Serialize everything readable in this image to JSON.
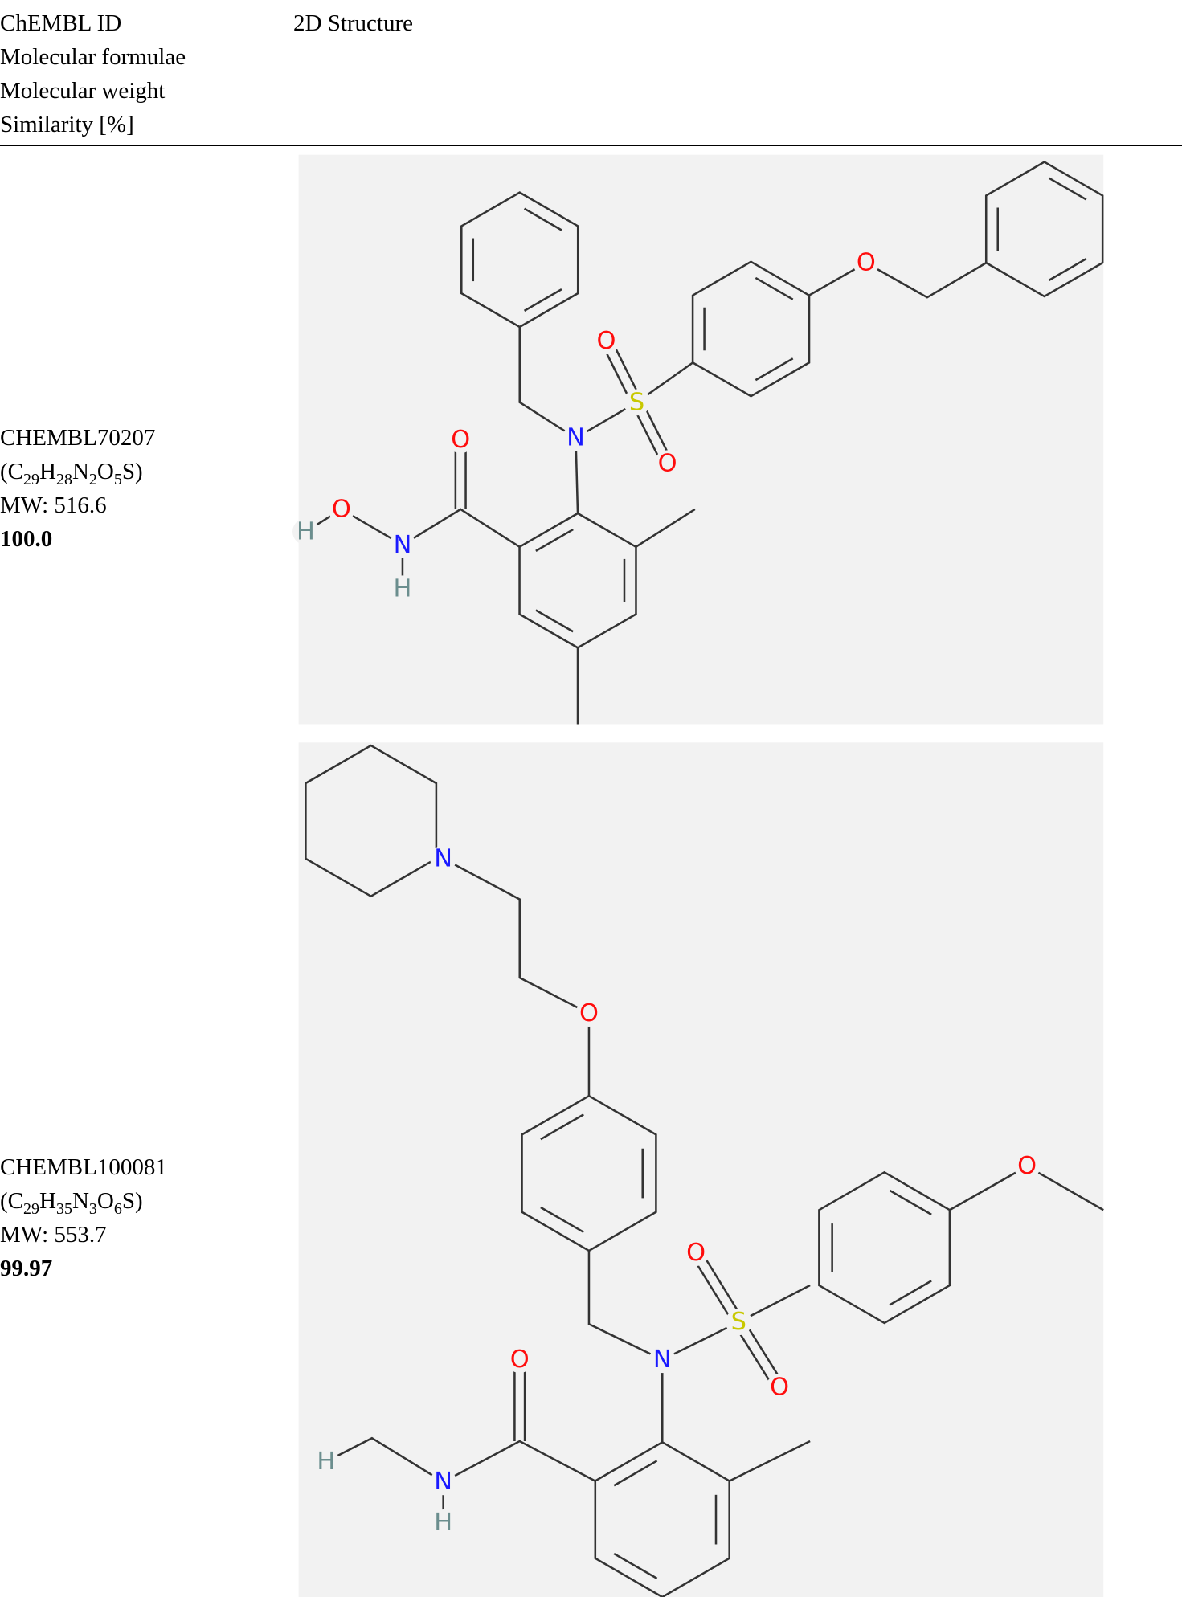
{
  "header": {
    "left": [
      "ChEMBL ID",
      "Molecular formulae",
      "Molecular weight",
      "Similarity [%]"
    ],
    "right": "2D Structure"
  },
  "rows": [
    {
      "id": "CHEMBL70207",
      "formula": "(C29H28N2O5S)",
      "mw": "MW: 516.6",
      "similarity": "100.0",
      "atoms": [
        "O",
        "N",
        "S",
        "O",
        "O",
        "O",
        "H",
        "O",
        "N",
        "H"
      ]
    },
    {
      "id": "CHEMBL100081",
      "formula": "(C29H35N3O6S)",
      "mw": "MW: 553.7",
      "similarity": "99.97",
      "atoms": [
        "N",
        "O",
        "O",
        "S",
        "O",
        "N",
        "O",
        "O",
        "H",
        "N",
        "H"
      ]
    }
  ]
}
